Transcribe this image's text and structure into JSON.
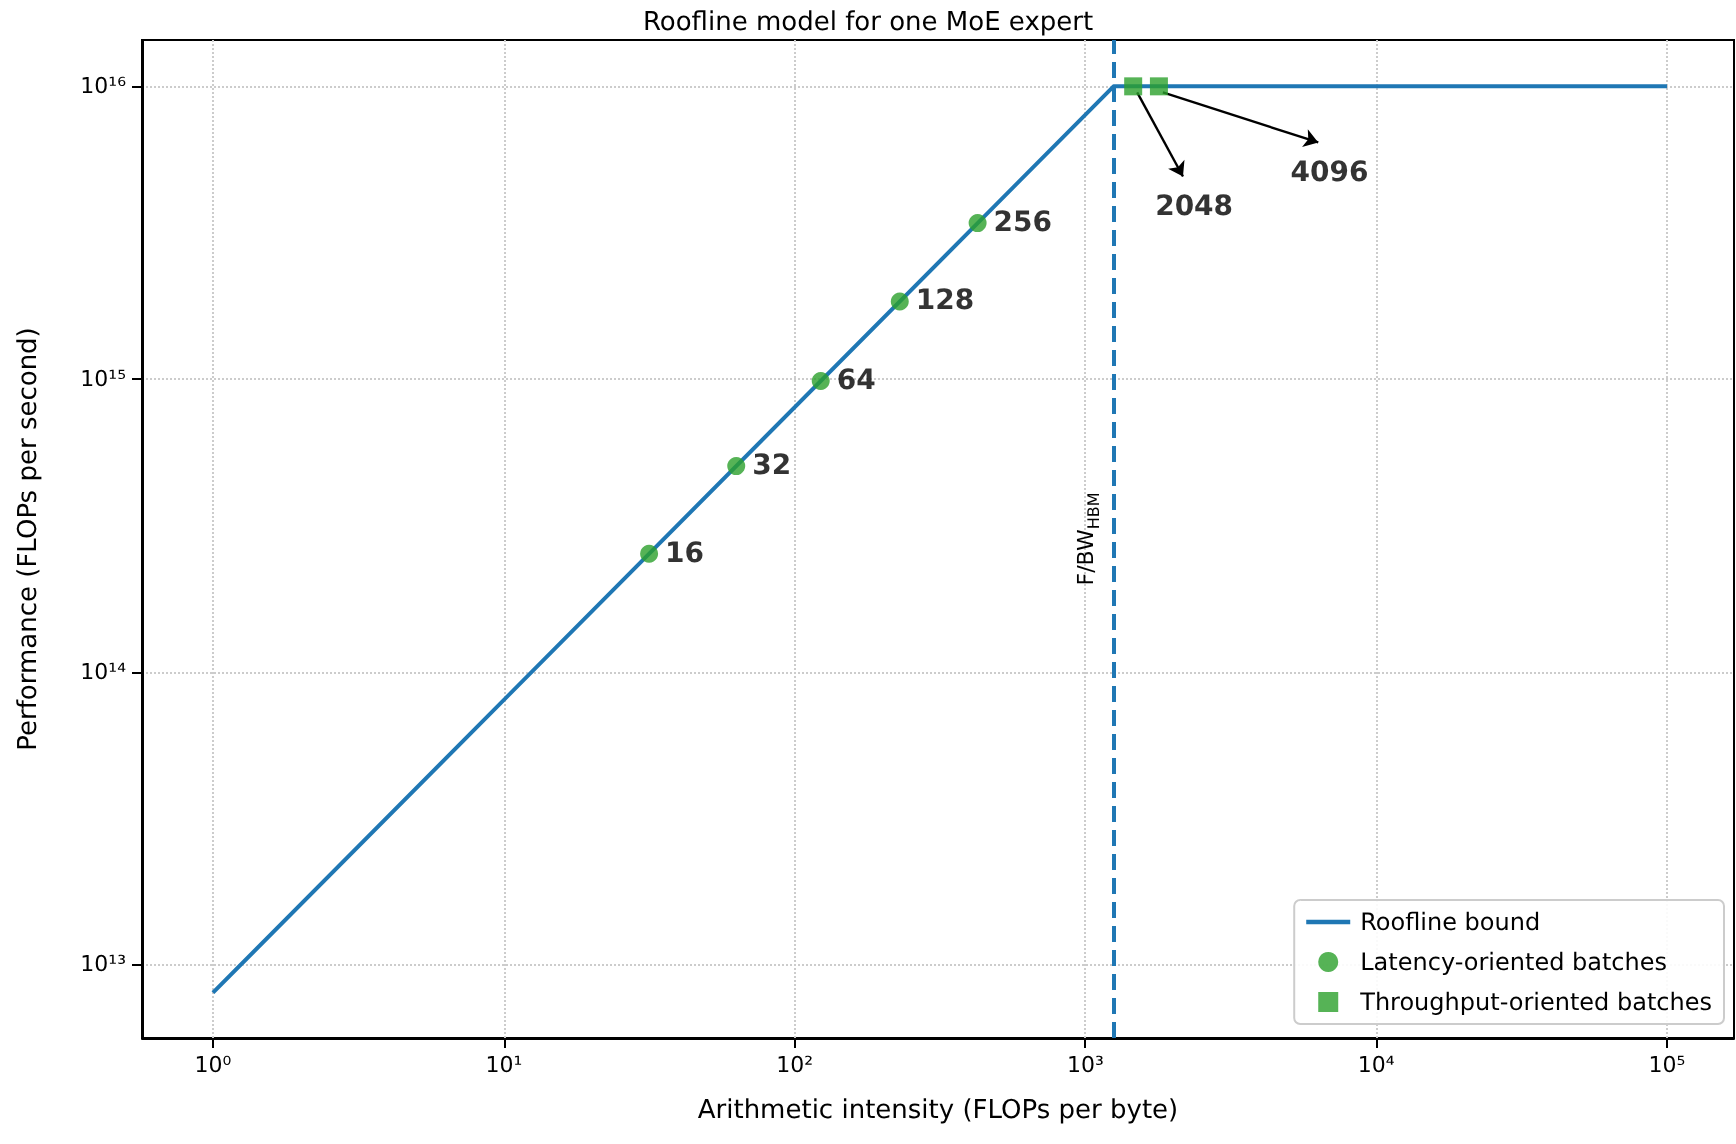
{
  "chart_data": {
    "type": "line",
    "title": "Roofline model for one MoE expert",
    "xlabel": "Arithmetic intensity (FLOPs per byte)",
    "ylabel": "Performance (FLOPs per second)",
    "log": "xy",
    "grid": true,
    "legend": "bottom right",
    "xlim": [
      0.57,
      170000
    ],
    "ylim": [
      5600000000000,
      14400000000000000
    ],
    "xticks": [
      {
        "value": 1,
        "label": "10⁰"
      },
      {
        "value": 10,
        "label": "10¹"
      },
      {
        "value": 100,
        "label": "10²"
      },
      {
        "value": 1000,
        "label": "10³"
      },
      {
        "value": 10000,
        "label": "10⁴"
      },
      {
        "value": 100000,
        "label": "10⁵"
      }
    ],
    "yticks": [
      {
        "value": 10000000000000,
        "label": "10¹³"
      },
      {
        "value": 100000000000000,
        "label": "10¹⁴"
      },
      {
        "value": 1000000000000000,
        "label": "10¹⁵"
      },
      {
        "value": 10000000000000000,
        "label": "10¹⁶"
      }
    ],
    "series": [
      {
        "name": "Roofline bound",
        "color": "#1f77b4",
        "marker": "none",
        "x": [
          1,
          1250,
          100000
        ],
        "values": [
          8000000000000,
          10000000000000000,
          10000000000000000
        ]
      },
      {
        "name": "Latency-oriented batches",
        "type": "scatter",
        "color": "#2ca02c",
        "marker": "circle",
        "x": [
          31.6,
          63,
          123,
          230,
          426
        ],
        "values": [
          253000000000000,
          504000000000000,
          984000000000000,
          1840000000000000,
          3410000000000000
        ]
      },
      {
        "name": "Throughput-oriented batches",
        "type": "scatter",
        "color": "#2ca02c",
        "marker": "square",
        "x": [
          1460,
          1790
        ],
        "values": [
          10000000000000000,
          10000000000000000
        ]
      }
    ],
    "ref_lines": [
      {
        "axis": "x",
        "value": 1250,
        "label": "F/BW$_{HBM}$",
        "color": "#1f77b4",
        "line_style": "dashed"
      }
    ],
    "annotations": [
      {
        "text": "16",
        "x": 31.6,
        "y": 253000000000000
      },
      {
        "text": "32",
        "x": 63,
        "y": 504000000000000
      },
      {
        "text": "64",
        "x": 123,
        "y": 984000000000000
      },
      {
        "text": "128",
        "x": 230,
        "y": 1840000000000000
      },
      {
        "text": "256",
        "x": 426,
        "y": 3410000000000000
      },
      {
        "text": "2048",
        "x": 1460,
        "y": 10000000000000000
      },
      {
        "text": "4096",
        "x": 1790,
        "y": 10000000000000000
      }
    ]
  }
}
